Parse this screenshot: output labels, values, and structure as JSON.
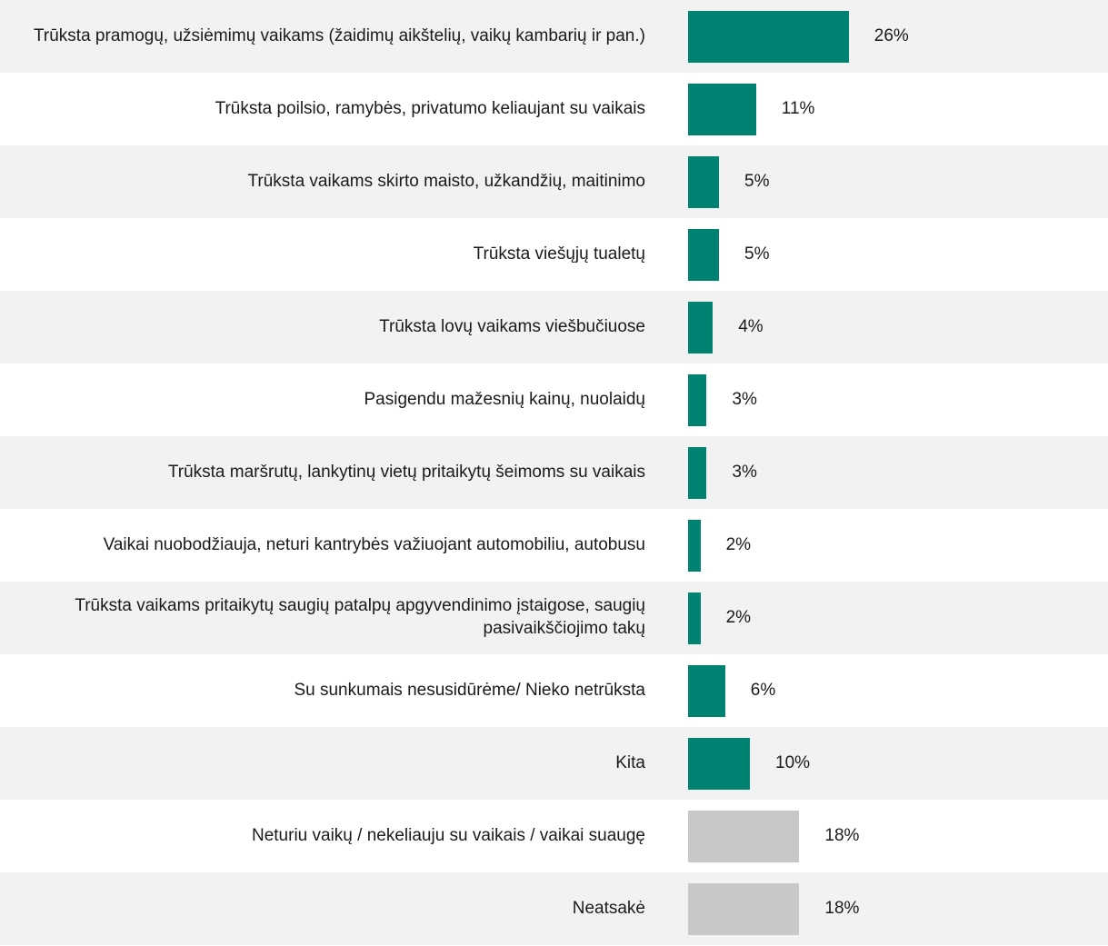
{
  "chart_data": {
    "type": "bar",
    "orientation": "horizontal",
    "categories": [
      "Trūksta pramogų, užsiėmimų vaikams (žaidimų aikštelių, vaikų kambarių ir pan.)",
      "Trūksta poilsio, ramybės, privatumo keliaujant su vaikais",
      "Trūksta vaikams skirto maisto, užkandžių, maitinimo",
      "Trūksta viešųjų tualetų",
      "Trūksta lovų vaikams viešbučiuose",
      "Pasigendu mažesnių kainų, nuolaidų",
      "Trūksta maršrutų, lankytinų vietų pritaikytų šeimoms su vaikais",
      "Vaikai nuobodžiauja, neturi kantrybės važiuojant automobiliu, autobusu",
      "Trūksta vaikams pritaikytų saugių patalpų apgyvendinimo įstaigose, saugių pasivaikščiojimo takų",
      "Su sunkumais nesusidūrėme/ Nieko netrūksta",
      "Kita",
      "Neturiu vaikų / nekeliauju su vaikais / vaikai suaugę",
      "Neatsakė"
    ],
    "values": [
      26,
      11,
      5,
      5,
      4,
      3,
      3,
      2,
      2,
      6,
      10,
      18,
      18
    ],
    "value_labels": [
      "26%",
      "11%",
      "5%",
      "5%",
      "4%",
      "3%",
      "3%",
      "2%",
      "2%",
      "6%",
      "10%",
      "18%",
      "18%"
    ],
    "colors": [
      "#008272",
      "#008272",
      "#008272",
      "#008272",
      "#008272",
      "#008272",
      "#008272",
      "#008272",
      "#008272",
      "#008272",
      "#008272",
      "#c8c8c8",
      "#c8c8c8"
    ]
  }
}
